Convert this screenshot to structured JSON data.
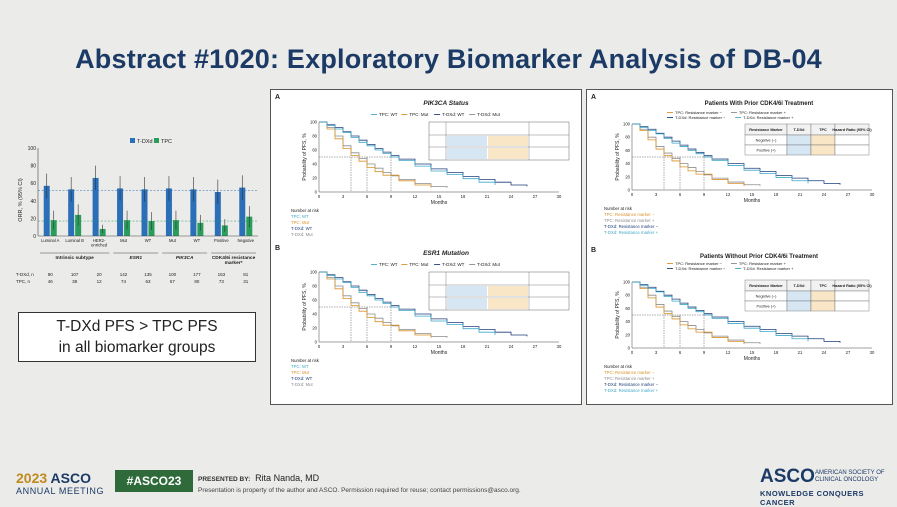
{
  "slide_title": "Abstract #1020: Exploratory Biomarker Analysis of DB-04",
  "left_chart": {
    "legend": [
      "T-DXd",
      "TPC"
    ],
    "ylabel": "ORR, % (95% CI)",
    "ticks": [
      "100",
      "80",
      "60",
      "40",
      "20",
      "0"
    ],
    "subgroups": [
      "Luminal A",
      "Luminal B",
      "HER2-enriched",
      "Mut",
      "WT",
      "Mut",
      "WT",
      "Positive",
      "Negative"
    ],
    "group_labels": [
      "Intrinsic subtype",
      "ESR1",
      "PIK3CA",
      "CDK4/6i resistance marker*"
    ],
    "n_tdxd_label": "T-DXd, n",
    "n_tpc_label": "TPC, n",
    "n_tdxd": [
      "90",
      "107",
      "20",
      "142",
      "135",
      "100",
      "177",
      "153",
      "81"
    ],
    "n_tpc": [
      "46",
      "38",
      "12",
      "74",
      "63",
      "57",
      "80",
      "73",
      "31"
    ]
  },
  "chart_data": {
    "type": "bar",
    "categories": [
      "Luminal A",
      "Luminal B",
      "HER2-enriched",
      "ESR1 Mut",
      "ESR1 WT",
      "PIK3CA Mut",
      "PIK3CA WT",
      "CDK4/6i resistance marker Positive",
      "CDK4/6i resistance marker Negative"
    ],
    "series": [
      {
        "name": "T-DXd",
        "values": [
          57,
          53,
          66,
          54,
          53,
          54,
          53,
          50,
          55
        ]
      },
      {
        "name": "TPC",
        "values": [
          18,
          24,
          8,
          18,
          17,
          18,
          15,
          12,
          22
        ]
      }
    ],
    "ylim": [
      0,
      100
    ],
    "ylabel": "ORR, % (95% CI)"
  },
  "callout": {
    "line1": "T-DXd PFS > TPC PFS",
    "line2": "in all biomarker groups"
  },
  "panel1": {
    "a_label": "A",
    "a_title": "PIK3CA Status",
    "a_legend": [
      "TPC: WT",
      "TPC: Mut",
      "T-DXd: WT",
      "T-DXd: Mut"
    ],
    "b_label": "B",
    "b_title": "ESR1 Mutation",
    "b_legend": [
      "TPC: WT",
      "TPC: Mut",
      "T-DXd: WT",
      "T-DXd: Mut"
    ],
    "xlabel": "Months",
    "ylabel": "Probability of PFS, %",
    "xticks": [
      "0",
      "3",
      "6",
      "9",
      "12",
      "15",
      "18",
      "21",
      "24",
      "27",
      "30"
    ],
    "yticks": [
      "100",
      "80",
      "60",
      "40",
      "20",
      "0"
    ],
    "risk_title": "Number at risk",
    "a_risk_rows": [
      "TPC: WT",
      "TPC: Mut",
      "T-DXd: WT",
      "T-DXd: Mut"
    ],
    "b_risk_rows": [
      "TPC: WT",
      "TPC: Mut",
      "T-DXd: WT",
      "T-DXd: Mut"
    ]
  },
  "panel2": {
    "a_label": "A",
    "a_title": "Patients With Prior CDK4/6i Treatment",
    "a_legend": [
      "TPC: Resistance marker −",
      "TPC: Resistance marker +",
      "T-DXd: Resistance marker −",
      "T-DXd: Resistance marker +"
    ],
    "b_label": "B",
    "b_title": "Patients Without Prior CDK4/6i Treatment",
    "b_legend": [
      "TPC: Resistance marker −",
      "TPC: Resistance marker +",
      "T-DXd: Resistance marker −",
      "T-DXd: Resistance marker +"
    ],
    "xlabel": "Months",
    "ylabel": "Probability of PFS, %",
    "xticks": [
      "0",
      "3",
      "6",
      "9",
      "12",
      "15",
      "18",
      "21",
      "24",
      "27",
      "30"
    ],
    "yticks": [
      "100",
      "80",
      "60",
      "40",
      "20",
      "0"
    ],
    "risk_title": "Number at risk",
    "table_head": [
      "Resistance Marker",
      "T-DXd",
      "TPC",
      "Hazard Ratio (95% CI)"
    ],
    "table_rows": [
      "Negative (−)",
      "Positive (+)"
    ]
  },
  "footer": {
    "year": "2023",
    "org": "ASCO",
    "meeting": "ANNUAL MEETING",
    "hashtag": "#ASCO23",
    "presented_label": "PRESENTED BY:",
    "presenter": "Rita Nanda, MD",
    "permission": "Presentation is property of the author and ASCO. Permission required for reuse; contact permissions@asco.org.",
    "logo": "ASCO",
    "logo_sub": "AMERICAN SOCIETY OF CLINICAL ONCOLOGY",
    "tagline": "KNOWLEDGE CONQUERS CANCER"
  },
  "colors": {
    "tdxd": "#2a6fb8",
    "tpc": "#2a9d5c",
    "title": "#1c3a66",
    "navy": "#1f3f7a",
    "orange": "#d9922b",
    "teal": "#3fa7c8",
    "gray": "#8c8c8c"
  }
}
